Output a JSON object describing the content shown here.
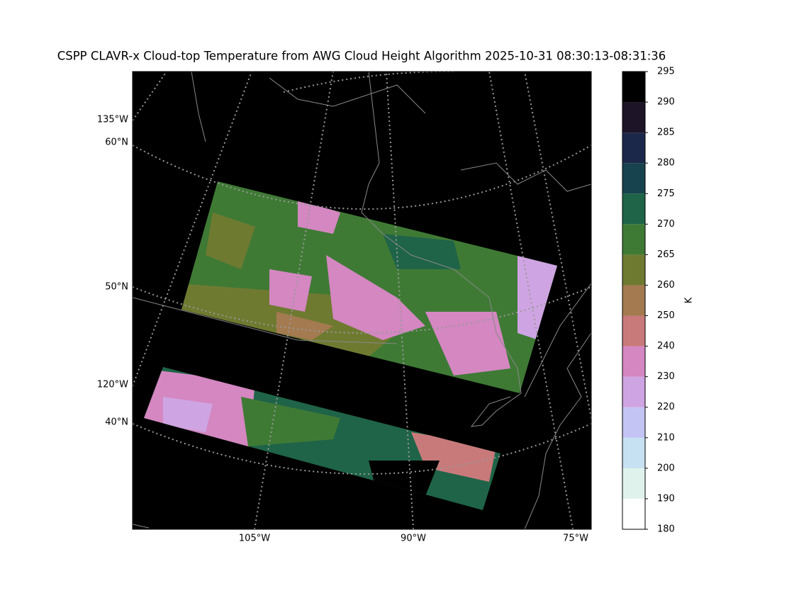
{
  "title": "CSPP CLAVR-x Cloud-top Temperature from AWG Cloud Height Algorithm 2025-10-31 08:30:13-08:31:36",
  "map": {
    "left_labels": [
      "135°W",
      "60°N",
      "50°N",
      "120°W",
      "40°N"
    ],
    "bottom_labels": [
      "105°W",
      "90°W",
      "75°W"
    ]
  },
  "colorbar": {
    "label": "K",
    "ticks": [
      180,
      190,
      200,
      210,
      220,
      230,
      240,
      250,
      260,
      265,
      270,
      275,
      280,
      285,
      290,
      295
    ],
    "colors": [
      "#ffffff",
      "#dff3ec",
      "#c6e1f1",
      "#c4c4f4",
      "#cfa4e2",
      "#d487c1",
      "#c87a7a",
      "#a47a50",
      "#6f7a31",
      "#3f7a35",
      "#1f6448",
      "#17434e",
      "#1c2849",
      "#1e1428",
      "#000000"
    ]
  }
}
